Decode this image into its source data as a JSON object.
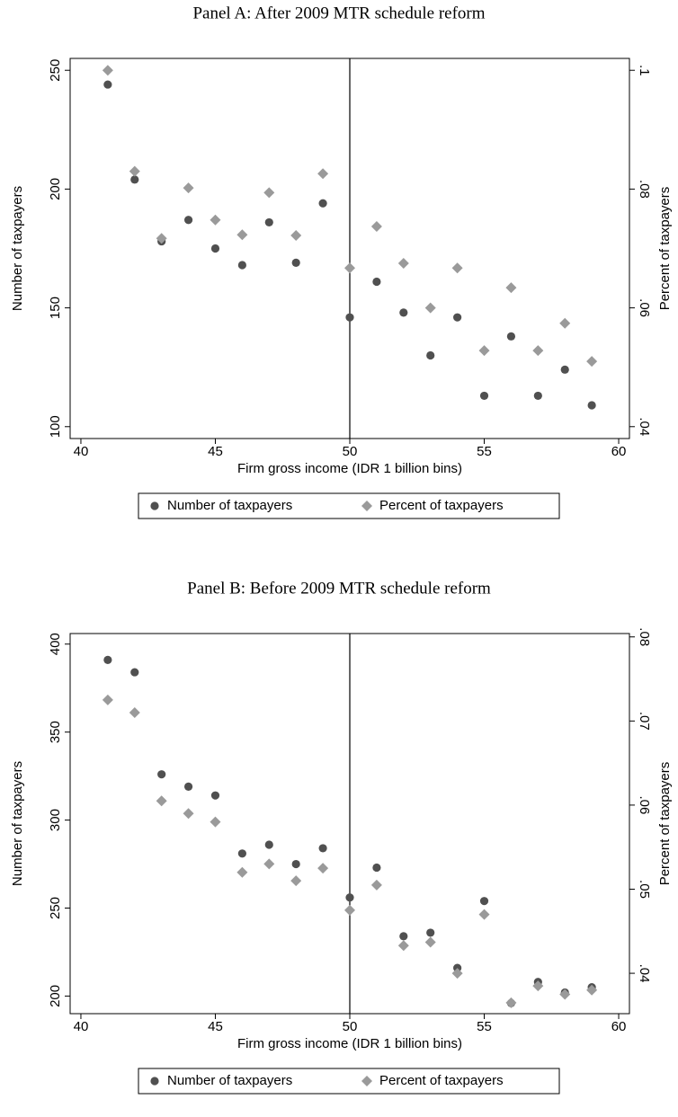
{
  "chart_data": [
    {
      "type": "scatter",
      "title": "Panel A: After 2009 MTR schedule reform",
      "x_label": "Firm gross income (IDR 1 billion bins)",
      "y_label": "Number of taxpayers",
      "y2_label": "Percent of taxpayers",
      "x": [
        41,
        42,
        43,
        44,
        45,
        46,
        47,
        48,
        49,
        50,
        51,
        52,
        53,
        54,
        55,
        56,
        57,
        58,
        59
      ],
      "series": [
        {
          "name": "Number of taxpayers",
          "color": "#505050",
          "marker": "circle",
          "values": [
            244,
            204,
            178,
            187,
            175,
            168,
            186,
            169,
            194,
            146,
            161,
            148,
            130,
            146,
            113,
            138,
            113,
            124,
            109
          ]
        },
        {
          "name": "Percent of taxpayers",
          "color": "#9a9a9a",
          "marker": "diamond",
          "axis": "y2",
          "values": [
            0.1,
            0.083,
            0.0717,
            0.0802,
            0.0748,
            0.0723,
            0.0794,
            0.0722,
            0.0826,
            0.0667,
            0.0737,
            0.0675,
            0.06,
            0.0667,
            0.0528,
            0.0634,
            0.0528,
            0.0574,
            0.051
          ]
        }
      ],
      "xlim": [
        39.6,
        60.4
      ],
      "xticks": [
        40,
        45,
        50,
        55,
        60
      ],
      "ylim": [
        95,
        255
      ],
      "yticks": [
        100,
        150,
        200,
        250
      ],
      "y2lim": [
        0.038,
        0.102
      ],
      "y2ticks": [
        {
          "value": 0.04,
          "label": ".04"
        },
        {
          "value": 0.06,
          "label": ".06"
        },
        {
          "value": 0.08,
          "label": ".08"
        },
        {
          "value": 0.1,
          "label": ".1"
        }
      ],
      "reference_line_x": 50,
      "legend": "bottom"
    },
    {
      "type": "scatter",
      "title": "Panel B: Before 2009 MTR schedule reform",
      "x_label": "Firm gross income (IDR 1 billion bins)",
      "y_label": "Number of taxpayers",
      "y2_label": "Percent of taxpayers",
      "x": [
        41,
        42,
        43,
        44,
        45,
        46,
        47,
        48,
        49,
        50,
        51,
        52,
        53,
        54,
        55,
        56,
        57,
        58,
        59
      ],
      "series": [
        {
          "name": "Number of taxpayers",
          "color": "#505050",
          "marker": "circle",
          "values": [
            391,
            384,
            326,
            319,
            314,
            281,
            286,
            275,
            284,
            256,
            273,
            234,
            236,
            216,
            254,
            196,
            208,
            202,
            205
          ]
        },
        {
          "name": "Percent of taxpayers",
          "color": "#9a9a9a",
          "marker": "diamond",
          "axis": "y2",
          "values": [
            0.0725,
            0.071,
            0.0605,
            0.059,
            0.058,
            0.052,
            0.053,
            0.051,
            0.0525,
            0.0475,
            0.0505,
            0.0433,
            0.0437,
            0.04,
            0.047,
            0.0365,
            0.0385,
            0.0375,
            0.038
          ]
        }
      ],
      "xlim": [
        39.6,
        60.4
      ],
      "xticks": [
        40,
        45,
        50,
        55,
        60
      ],
      "ylim": [
        190,
        406
      ],
      "yticks": [
        200,
        250,
        300,
        350,
        400
      ],
      "y2lim": [
        0.0352,
        0.0804
      ],
      "y2ticks": [
        {
          "value": 0.04,
          "label": ".04"
        },
        {
          "value": 0.05,
          "label": ".05"
        },
        {
          "value": 0.06,
          "label": ".06"
        },
        {
          "value": 0.07,
          "label": ".07"
        },
        {
          "value": 0.08,
          "label": ".08"
        }
      ],
      "reference_line_x": 50,
      "legend": "bottom"
    }
  ]
}
